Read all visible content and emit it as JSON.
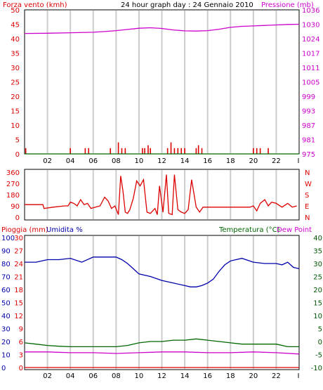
{
  "title": "24 hour graph day : 24 Gennaio 2010",
  "colors": {
    "red": "#dd0000",
    "magenta": "#cc00cc",
    "blue": "#0000aa",
    "green": "#006600",
    "dark_green": "#005500"
  },
  "chart_data": [
    {
      "type": "line",
      "panel": "wind-pressure",
      "labels": {
        "left": "Forza vento (kmh)",
        "title": "24 hour graph day : 24 Gennaio 2010",
        "right": "Pressione (mb)"
      },
      "x_ticks": [
        "02",
        "04",
        "06",
        "08",
        "10",
        "12",
        "14",
        "16",
        "18",
        "20",
        "22",
        "I"
      ],
      "x_range": [
        0,
        24
      ],
      "y_left": {
        "range": [
          0,
          50
        ],
        "ticks": [
          "0",
          "5",
          "10",
          "15",
          "20",
          "25",
          "30",
          "35",
          "40",
          "45",
          "50"
        ]
      },
      "y_right": {
        "range": [
          975,
          1036
        ],
        "ticks": [
          "975",
          "981",
          "987",
          "993",
          "999",
          "1005",
          "1011",
          "1017",
          "1024",
          "1030",
          "1036"
        ]
      },
      "series": [
        {
          "axis": "right",
          "color": "magenta",
          "x": [
            0,
            2,
            4,
            6,
            7,
            8,
            9,
            10,
            11,
            12,
            13,
            14,
            15,
            16,
            17,
            18,
            19,
            20,
            21,
            22,
            23,
            24
          ],
          "y": [
            1026,
            1026.1,
            1026.3,
            1026.5,
            1026.8,
            1027.2,
            1027.7,
            1028.2,
            1028.4,
            1028.1,
            1027.5,
            1027.1,
            1027.0,
            1027.2,
            1027.8,
            1028.6,
            1029.0,
            1029.2,
            1029.4,
            1029.6,
            1029.8,
            1029.9
          ]
        },
        {
          "axis": "left",
          "color": "red",
          "kind": "bars",
          "x": [
            0.1,
            4.0,
            5.3,
            5.6,
            7.5,
            8.2,
            8.5,
            8.8,
            10.3,
            10.5,
            10.8,
            11.0,
            12.5,
            12.8,
            13.1,
            13.4,
            13.7,
            14.0,
            15.0,
            15.2,
            15.5,
            20.0,
            20.3,
            20.6,
            21.3
          ],
          "y": [
            2,
            2,
            2,
            2,
            2,
            4,
            2,
            2,
            2,
            2,
            3,
            2,
            2,
            4,
            2,
            2,
            2,
            2,
            2,
            3,
            2,
            2,
            2,
            2,
            2
          ]
        },
        {
          "axis": "left",
          "color": "green",
          "x": [
            0,
            24
          ],
          "y": [
            0,
            0
          ]
        }
      ]
    },
    {
      "type": "line",
      "panel": "wind-direction",
      "x_ticks": [],
      "x_range": [
        0,
        24
      ],
      "y_left": {
        "range": [
          0,
          360
        ],
        "ticks": [
          "0",
          "90",
          "180",
          "270",
          "360"
        ]
      },
      "y_right_labels": [
        "N",
        "E",
        "S",
        "W",
        "N"
      ],
      "series": [
        {
          "color": "red",
          "x": [
            0,
            1.6,
            1.7,
            2.5,
            3.5,
            3.8,
            4.0,
            4.3,
            4.6,
            4.9,
            5.2,
            5.5,
            5.8,
            6.2,
            6.6,
            7.0,
            7.3,
            7.6,
            7.9,
            8.2,
            8.4,
            8.6,
            8.8,
            9.0,
            9.2,
            9.5,
            9.8,
            10.1,
            10.4,
            10.7,
            11.0,
            11.4,
            11.6,
            11.8,
            12.1,
            12.4,
            12.6,
            12.9,
            13.1,
            13.4,
            13.7,
            14.0,
            14.3,
            14.6,
            15.0,
            15.3,
            15.6,
            16.0,
            17.0,
            18.0,
            19.0,
            19.7,
            20.0,
            20.3,
            20.6,
            21.0,
            21.3,
            21.6,
            22.0,
            22.5,
            23.0,
            23.4,
            23.8
          ],
          "y": [
            100,
            100,
            70,
            80,
            90,
            90,
            120,
            110,
            90,
            140,
            100,
            110,
            70,
            80,
            90,
            160,
            130,
            70,
            90,
            20,
            330,
            210,
            40,
            30,
            60,
            150,
            290,
            250,
            300,
            40,
            30,
            70,
            20,
            250,
            40,
            340,
            30,
            20,
            340,
            60,
            40,
            30,
            60,
            300,
            80,
            40,
            80,
            80,
            80,
            80,
            80,
            80,
            90,
            50,
            110,
            140,
            90,
            120,
            110,
            80,
            110,
            80,
            90
          ]
        }
      ]
    },
    {
      "type": "line",
      "panel": "rain-humidity-temperature",
      "labels": {
        "left1": "Pioggia (mm)",
        "left2": "Umidita %",
        "right1": "Temperatura (°C)",
        "right2": "Dew Point"
      },
      "x_ticks": [
        "02",
        "04",
        "06",
        "08",
        "10",
        "12",
        "14",
        "16",
        "18",
        "20",
        "22",
        "I"
      ],
      "x_range": [
        0,
        24
      ],
      "y_rain": {
        "range": [
          0,
          30
        ],
        "ticks": [
          "0",
          "3",
          "6",
          "9",
          "12",
          "15",
          "18",
          "21",
          "24",
          "27",
          "30"
        ]
      },
      "y_humidity": {
        "range": [
          0,
          100
        ],
        "ticks": [
          "0",
          "10",
          "20",
          "30",
          "40",
          "50",
          "60",
          "70",
          "80",
          "90",
          "100"
        ]
      },
      "y_temperature": {
        "range": [
          -10,
          40
        ],
        "ticks": [
          "-10",
          "-5",
          "0",
          "5",
          "10",
          "15",
          "20",
          "25",
          "30",
          "35",
          "40"
        ]
      },
      "series": [
        {
          "axis": "humidity",
          "color": "blue",
          "x": [
            0,
            1,
            2,
            3,
            4,
            5,
            6,
            7,
            8,
            8.5,
            9,
            9.5,
            10,
            11,
            12,
            13,
            14,
            14.5,
            15,
            15.5,
            16,
            16.5,
            17,
            17.5,
            18,
            19,
            20,
            21,
            22,
            22.5,
            23,
            23.5,
            24
          ],
          "y": [
            81,
            81,
            83,
            83,
            84,
            81,
            85,
            85,
            85,
            83,
            80,
            76,
            72,
            70,
            67,
            65,
            63,
            62,
            62,
            63,
            65,
            68,
            74,
            79,
            82,
            84,
            81,
            80,
            80,
            79,
            81,
            77,
            76
          ]
        },
        {
          "axis": "temperature",
          "color": "green",
          "x": [
            0,
            1,
            2,
            3,
            4,
            5,
            6,
            7,
            8,
            9,
            10,
            11,
            12,
            13,
            14,
            15,
            16,
            17,
            18,
            19,
            20,
            21,
            22,
            23,
            24
          ],
          "y": [
            -0.5,
            -1,
            -1.5,
            -1.8,
            -2,
            -2,
            -2,
            -2,
            -2,
            -1.5,
            -0.5,
            0,
            0,
            0.5,
            0.5,
            1,
            0.5,
            0,
            -0.5,
            -1,
            -1,
            -1,
            -1,
            -2,
            -2
          ]
        },
        {
          "axis": "temperature",
          "color": "magenta",
          "x": [
            0,
            2,
            4,
            6,
            8,
            10,
            12,
            14,
            16,
            18,
            20,
            22,
            24
          ],
          "y": [
            -4,
            -4,
            -4.3,
            -4.3,
            -4.6,
            -4.3,
            -4,
            -4,
            -4.3,
            -4.3,
            -4,
            -4.3,
            -4.8
          ]
        },
        {
          "axis": "rain",
          "color": "red",
          "x": [
            0,
            24
          ],
          "y": [
            0,
            0
          ]
        }
      ]
    }
  ]
}
